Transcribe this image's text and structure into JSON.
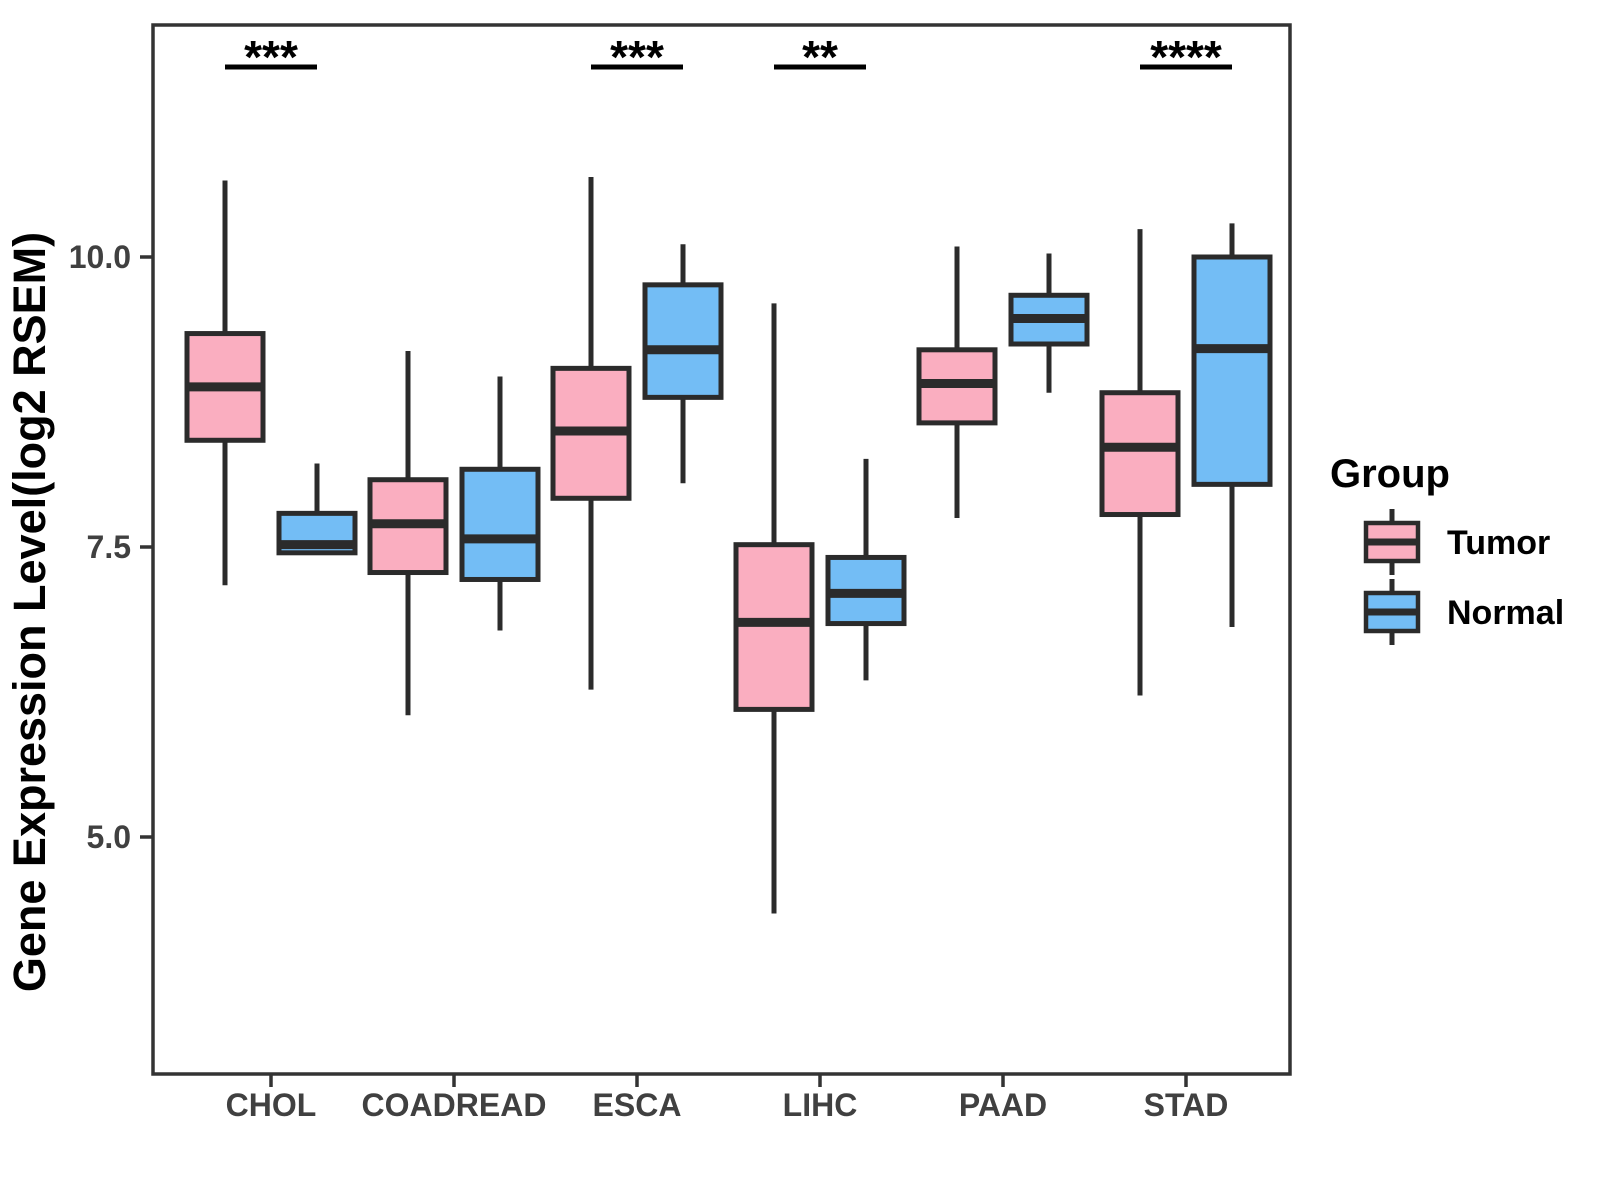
{
  "chart_data": {
    "type": "boxplot",
    "title": "",
    "xlabel": "",
    "ylabel": "Gene Expression Level(log2 RSEM)",
    "categories": [
      "CHOL",
      "COADREAD",
      "ESCA",
      "LIHC",
      "PAAD",
      "STAD"
    ],
    "y_axis": {
      "ticks": [
        5.0,
        7.5,
        10.0
      ],
      "tick_labels": [
        "5.0",
        "7.5",
        "10.0"
      ],
      "range": [
        3.0,
        12.0
      ],
      "grid": false
    },
    "series": [
      {
        "name": "Tumor",
        "color": "#FAAEC0",
        "boxes": [
          {
            "category": "CHOL",
            "min": 7.17,
            "q1": 8.42,
            "median": 8.88,
            "q3": 9.34,
            "max": 10.66
          },
          {
            "category": "COADREAD",
            "min": 6.05,
            "q1": 7.28,
            "median": 7.7,
            "q3": 8.08,
            "max": 9.19
          },
          {
            "category": "ESCA",
            "min": 6.27,
            "q1": 7.92,
            "median": 8.5,
            "q3": 9.04,
            "max": 10.69
          },
          {
            "category": "LIHC",
            "min": 4.34,
            "q1": 6.1,
            "median": 6.85,
            "q3": 7.52,
            "max": 9.6
          },
          {
            "category": "PAAD",
            "min": 7.75,
            "q1": 8.57,
            "median": 8.91,
            "q3": 9.2,
            "max": 10.09
          },
          {
            "category": "STAD",
            "min": 6.22,
            "q1": 7.78,
            "median": 8.36,
            "q3": 8.83,
            "max": 10.24
          }
        ]
      },
      {
        "name": "Normal",
        "color": "#73BDF5",
        "boxes": [
          {
            "category": "CHOL",
            "min": 7.45,
            "q1": 7.45,
            "median": 7.52,
            "q3": 7.79,
            "max": 8.22
          },
          {
            "category": "COADREAD",
            "min": 6.78,
            "q1": 7.22,
            "median": 7.57,
            "q3": 8.17,
            "max": 8.97
          },
          {
            "category": "ESCA",
            "min": 8.05,
            "q1": 8.79,
            "median": 9.2,
            "q3": 9.76,
            "max": 10.11
          },
          {
            "category": "LIHC",
            "min": 6.35,
            "q1": 6.84,
            "median": 7.1,
            "q3": 7.41,
            "max": 8.26
          },
          {
            "category": "PAAD",
            "min": 8.83,
            "q1": 9.25,
            "median": 9.47,
            "q3": 9.67,
            "max": 10.03
          },
          {
            "category": "STAD",
            "min": 6.81,
            "q1": 8.04,
            "median": 9.21,
            "q3": 10.0,
            "max": 10.29
          }
        ]
      }
    ],
    "significance": [
      {
        "category": "CHOL",
        "label": "***"
      },
      {
        "category": "ESCA",
        "label": "***"
      },
      {
        "category": "LIHC",
        "label": "**"
      },
      {
        "category": "STAD",
        "label": "****"
      }
    ],
    "legend": {
      "title": "Group",
      "position": "right"
    },
    "colors": {
      "stroke": "#2b2b2b",
      "frame": "#333333",
      "significance": "#000000"
    }
  }
}
